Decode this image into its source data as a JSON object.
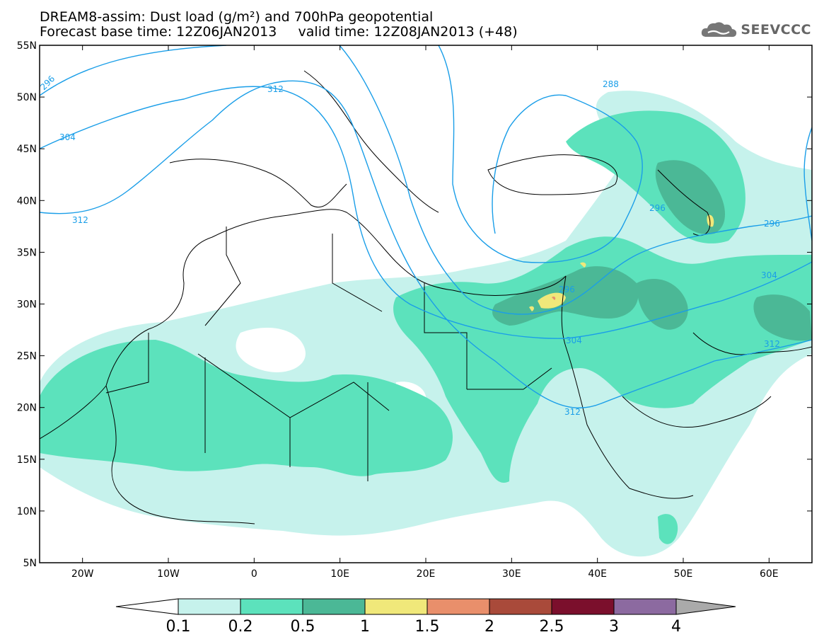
{
  "header": {
    "line1": "DREAM8-assim: Dust load (g/m²) and 700hPa geopotential",
    "line2": "Forecast base time: 12Z06JAN2013     valid time: 12Z08JAN2013 (+48)"
  },
  "logo": {
    "text": "SEEVCCC",
    "icon": "cloud-icon"
  },
  "map": {
    "lon_range": [
      -25,
      65
    ],
    "lat_range": [
      5,
      55
    ],
    "lat_ticks": [
      "55N",
      "50N",
      "45N",
      "40N",
      "35N",
      "30N",
      "25N",
      "20N",
      "15N",
      "10N",
      "5N"
    ],
    "lon_ticks": [
      "20W",
      "10W",
      "0",
      "10E",
      "20E",
      "30E",
      "40E",
      "50E",
      "60E"
    ],
    "contour_labels": [
      "296",
      "312",
      "304",
      "312",
      "288",
      "296",
      "296",
      "304",
      "312",
      "304",
      "312",
      "296"
    ]
  },
  "legend": {
    "labels": [
      "0.1",
      "0.2",
      "0.5",
      "1",
      "1.5",
      "2",
      "2.5",
      "3",
      "4"
    ],
    "colors": [
      "#c6f2ec",
      "#5ce2bc",
      "#4bb896",
      "#f0e87a",
      "#e98f6b",
      "#a94a3a",
      "#7b0f2c",
      "#8c6aa0",
      "#aaaaaa"
    ],
    "low_color": "#ffffff"
  }
}
